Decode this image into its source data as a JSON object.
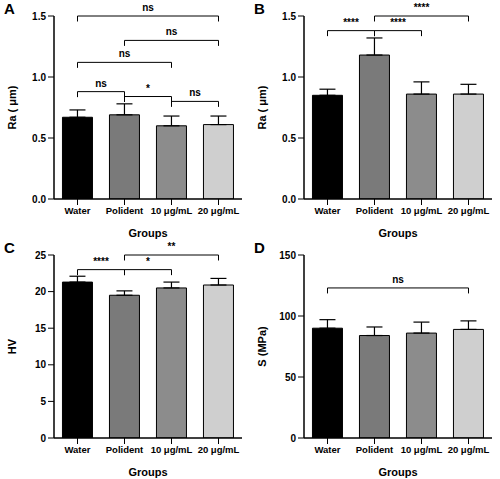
{
  "chart_data": [
    {
      "type": "bar",
      "title": "A",
      "x_label": "Groups",
      "y_label": "Ra ( μm)",
      "categories": [
        "Water",
        "Polident",
        "10 μg/mL",
        "20 μg/mL"
      ],
      "values": [
        0.67,
        0.69,
        0.6,
        0.61
      ],
      "errors": [
        0.06,
        0.09,
        0.08,
        0.07
      ],
      "colors": [
        "#000000",
        "#7a7a7a",
        "#8c8c8c",
        "#cfcfcf"
      ],
      "ylim": [
        0,
        1.5
      ],
      "yticks": [
        {
          "value": 0,
          "label": "0.0"
        },
        {
          "value": 0.5,
          "label": "0.5"
        },
        {
          "value": 1,
          "label": "1.0"
        },
        {
          "value": 1.5,
          "label": "1.5"
        }
      ],
      "grid": false,
      "annotations": [
        {
          "from": "Water",
          "to": "20 μg/mL",
          "y": 1.5,
          "label": "ns"
        },
        {
          "from": "Polident",
          "to": "20 μg/mL",
          "y": 1.3,
          "label": "ns"
        },
        {
          "from": "Water",
          "to": "10 μg/mL",
          "y": 1.12,
          "label": "ns"
        },
        {
          "from": "Water",
          "to": "Polident",
          "y": 0.88,
          "label": "ns"
        },
        {
          "from": "Polident",
          "to": "10 μg/mL",
          "y": 0.84,
          "label": "*"
        },
        {
          "from": "10 μg/mL",
          "to": "20 μg/mL",
          "y": 0.8,
          "label": "ns"
        }
      ]
    },
    {
      "type": "bar",
      "title": "B",
      "x_label": "Groups",
      "y_label": "Ra ( μm)",
      "categories": [
        "Water",
        "Polident",
        "10 μg/mL",
        "20 μg/mL"
      ],
      "values": [
        0.85,
        1.18,
        0.86,
        0.86
      ],
      "errors": [
        0.05,
        0.14,
        0.1,
        0.08
      ],
      "colors": [
        "#000000",
        "#7a7a7a",
        "#8c8c8c",
        "#cfcfcf"
      ],
      "ylim": [
        0,
        1.5
      ],
      "yticks": [
        {
          "value": 0,
          "label": "0.0"
        },
        {
          "value": 0.5,
          "label": "0.5"
        },
        {
          "value": 1,
          "label": "1.0"
        },
        {
          "value": 1.5,
          "label": "1.5"
        }
      ],
      "grid": false,
      "annotations": [
        {
          "from": "Water",
          "to": "Polident",
          "y": 1.38,
          "label": "****"
        },
        {
          "from": "Polident",
          "to": "10 μg/mL",
          "y": 1.38,
          "label": "****"
        },
        {
          "from": "Polident",
          "to": "20 μg/mL",
          "y": 1.5,
          "label": "****"
        }
      ]
    },
    {
      "type": "bar",
      "title": "C",
      "x_label": "Groups",
      "y_label": "HV",
      "categories": [
        "Water",
        "Polident",
        "10 μg/mL",
        "20 μg/mL"
      ],
      "values": [
        21.3,
        19.5,
        20.5,
        20.9
      ],
      "errors": [
        0.8,
        0.6,
        0.8,
        0.9
      ],
      "colors": [
        "#000000",
        "#7a7a7a",
        "#8c8c8c",
        "#cfcfcf"
      ],
      "ylim": [
        0,
        25
      ],
      "yticks": [
        0,
        5,
        10,
        15,
        20,
        25
      ],
      "grid": false,
      "annotations": [
        {
          "from": "Water",
          "to": "Polident",
          "y": 23,
          "label": "****"
        },
        {
          "from": "Polident",
          "to": "10 μg/mL",
          "y": 23,
          "label": "*"
        },
        {
          "from": "Polident",
          "to": "20 μg/mL",
          "y": 25,
          "label": "**"
        }
      ]
    },
    {
      "type": "bar",
      "title": "D",
      "x_label": "Groups",
      "y_label": "S (MPa)",
      "categories": [
        "Water",
        "Polident",
        "10 μg/mL",
        "20 μg/mL"
      ],
      "values": [
        90,
        84,
        86,
        89
      ],
      "errors": [
        7,
        7,
        9,
        7
      ],
      "colors": [
        "#000000",
        "#7a7a7a",
        "#8c8c8c",
        "#cfcfcf"
      ],
      "ylim": [
        0,
        150
      ],
      "yticks": [
        0,
        50,
        100,
        150
      ],
      "grid": false,
      "annotations": [
        {
          "from": "Water",
          "to": "20 μg/mL",
          "y": 123,
          "label": "ns"
        }
      ]
    }
  ]
}
